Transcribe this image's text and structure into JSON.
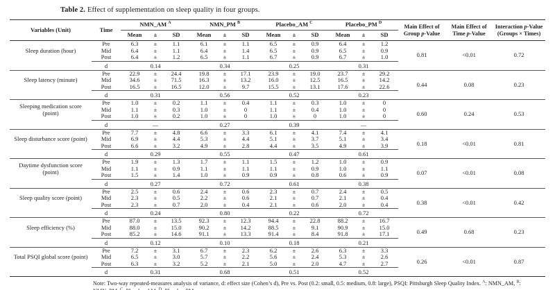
{
  "caption": {
    "label": "Table 2.",
    "text": "Effect of supplementation on sleep quality in four groups."
  },
  "table": {
    "header": {
      "variables": "Variables (Unit)",
      "time": "Time",
      "groups": [
        {
          "name": "NMN_AM",
          "sup": "A"
        },
        {
          "name": "NMN_PM",
          "sup": "B"
        },
        {
          "name": "Placebo_AM",
          "sup": "C"
        },
        {
          "name": "Placebo_PM",
          "sup": "D"
        }
      ],
      "stat_cols": [
        "Mean",
        "±",
        "SD"
      ],
      "effect_cols": [
        "Main Effect of Group p-Value",
        "Main Effect of Time p-Value",
        "Interaction p-Value (Groups × Times)"
      ]
    },
    "pm": "±",
    "d_label": "d",
    "time_levels": [
      "Pre",
      "Mid",
      "Post"
    ],
    "blocks": [
      {
        "variable": "Sleep duration (hour)",
        "groups": [
          {
            "mean": [
              "6.3",
              "6.4",
              "6.4"
            ],
            "sd": [
              "1.1",
              "1.1",
              "1.2"
            ],
            "d": "0.14"
          },
          {
            "mean": [
              "6.1",
              "6.4",
              "6.5"
            ],
            "sd": [
              "1.1",
              "1.4",
              "1.1"
            ],
            "d": "0.34"
          },
          {
            "mean": [
              "6.5",
              "6.5",
              "6.7"
            ],
            "sd": [
              "0.9",
              "0.9",
              "0.9"
            ],
            "d": "0.25"
          },
          {
            "mean": [
              "6.4",
              "6.5",
              "6.7"
            ],
            "sd": [
              "1.2",
              "0.9",
              "1.0"
            ],
            "d": "0.31"
          }
        ],
        "p_group": "0.81",
        "p_time": "<0.01",
        "p_interaction": "0.72"
      },
      {
        "variable": "Sleep latency (minute)",
        "groups": [
          {
            "mean": [
              "22.9",
              "34.6",
              "16.5"
            ],
            "sd": [
              "24.4",
              "71.5",
              "16.5"
            ],
            "d": "0.31"
          },
          {
            "mean": [
              "19.8",
              "16.3",
              "12.0"
            ],
            "sd": [
              "17.1",
              "13.2",
              "9.7"
            ],
            "d": "0.56"
          },
          {
            "mean": [
              "23.9",
              "16.0",
              "15.5"
            ],
            "sd": [
              "19.0",
              "12.5",
              "13.1"
            ],
            "d": "0.52"
          },
          {
            "mean": [
              "23.7",
              "16.5",
              "17.6"
            ],
            "sd": [
              "29.2",
              "14.2",
              "22.6"
            ],
            "d": "0.23"
          }
        ],
        "p_group": "0.44",
        "p_time": "0.08",
        "p_interaction": "0.23"
      },
      {
        "variable": "Sleeping medication score (point)",
        "groups": [
          {
            "mean": [
              "1.0",
              "1.1",
              "1.0"
            ],
            "sd": [
              "0.2",
              "0.3",
              "0.2"
            ],
            "d": "—"
          },
          {
            "mean": [
              "1.1",
              "1.0",
              "1.0"
            ],
            "sd": [
              "0.4",
              "0",
              "0"
            ],
            "d": "0.27"
          },
          {
            "mean": [
              "1.1",
              "1.1",
              "1.0"
            ],
            "sd": [
              "0.3",
              "0.4",
              "0"
            ],
            "d": "0.39"
          },
          {
            "mean": [
              "1.0",
              "1.0",
              "1.0"
            ],
            "sd": [
              "0",
              "0",
              "0"
            ],
            "d": "—"
          }
        ],
        "p_group": "0.60",
        "p_time": "0.24",
        "p_interaction": "0.53"
      },
      {
        "variable": "Sleep disturbance score (point)",
        "groups": [
          {
            "mean": [
              "7.7",
              "6.9",
              "6.6"
            ],
            "sd": [
              "4.8",
              "4.4",
              "3.2"
            ],
            "d": "0.29"
          },
          {
            "mean": [
              "6.6",
              "5.3",
              "4.9"
            ],
            "sd": [
              "3.3",
              "4.4",
              "2.8"
            ],
            "d": "0.55"
          },
          {
            "mean": [
              "6.1",
              "5.1",
              "4.4"
            ],
            "sd": [
              "4.1",
              "3.7",
              "3.5"
            ],
            "d": "0.47"
          },
          {
            "mean": [
              "7.4",
              "5.1",
              "4.9"
            ],
            "sd": [
              "4.1",
              "3.4",
              "3.9"
            ],
            "d": "0.61"
          }
        ],
        "p_group": "0.18",
        "p_time": "<0.01",
        "p_interaction": "0.81"
      },
      {
        "variable": "Daytime dysfunction score (point)",
        "groups": [
          {
            "mean": [
              "1.9",
              "1.1",
              "1.5"
            ],
            "sd": [
              "1.3",
              "0.9",
              "1.4"
            ],
            "d": "0.27"
          },
          {
            "mean": [
              "1.7",
              "1.1",
              "1.0"
            ],
            "sd": [
              "1.1",
              "1.1",
              "0.9"
            ],
            "d": "0.72"
          },
          {
            "mean": [
              "1.5",
              "1.1",
              "0.9"
            ],
            "sd": [
              "1.2",
              "0.9",
              "0.8"
            ],
            "d": "0.61"
          },
          {
            "mean": [
              "1.0",
              "1.0",
              "0.6"
            ],
            "sd": [
              "0.9",
              "1.1",
              "0.9"
            ],
            "d": "0.38"
          }
        ],
        "p_group": "0.07",
        "p_time": "<0.01",
        "p_interaction": "0.08"
      },
      {
        "variable": "Sleep quality score (point)",
        "groups": [
          {
            "mean": [
              "2.5",
              "2.3",
              "2.3"
            ],
            "sd": [
              "0.6",
              "0.5",
              "0.7"
            ],
            "d": "0.24"
          },
          {
            "mean": [
              "2.4",
              "2.2",
              "2.0"
            ],
            "sd": [
              "0.6",
              "0.6",
              "0.4"
            ],
            "d": "0.80"
          },
          {
            "mean": [
              "2.3",
              "2.1",
              "2.1"
            ],
            "sd": [
              "0.7",
              "0.7",
              "0.6"
            ],
            "d": "0.22"
          },
          {
            "mean": [
              "2.4",
              "2.1",
              "2.0"
            ],
            "sd": [
              "0.5",
              "0.4",
              "0.4"
            ],
            "d": "0.72"
          }
        ],
        "p_group": "0.38",
        "p_time": "<0.01",
        "p_interaction": "0.42"
      },
      {
        "variable": "Sleep efficiency (%)",
        "groups": [
          {
            "mean": [
              "87.0",
              "88.0",
              "85.2"
            ],
            "sd": [
              "13.5",
              "15.0",
              "14.6"
            ],
            "d": "0.12"
          },
          {
            "mean": [
              "92.3",
              "90.2",
              "91.1"
            ],
            "sd": [
              "12.3",
              "14.2",
              "13.3"
            ],
            "d": "0.10"
          },
          {
            "mean": [
              "94.4",
              "88.5",
              "91.4"
            ],
            "sd": [
              "22.8",
              "9.1",
              "8.4"
            ],
            "d": "0.18"
          },
          {
            "mean": [
              "88.2",
              "90.9",
              "91.8"
            ],
            "sd": [
              "16.7",
              "15.0",
              "17.1"
            ],
            "d": "0.21"
          }
        ],
        "p_group": "0.49",
        "p_time": "0.68",
        "p_interaction": "0.23"
      },
      {
        "variable": "Total PSQI global score (point)",
        "groups": [
          {
            "mean": [
              "7.2",
              "6.5",
              "6.3"
            ],
            "sd": [
              "3.1",
              "3.0",
              "3.2"
            ],
            "d": "0.31"
          },
          {
            "mean": [
              "6.7",
              "5.7",
              "5.2"
            ],
            "sd": [
              "2.3",
              "2.2",
              "2.1"
            ],
            "d": "0.68"
          },
          {
            "mean": [
              "6.2",
              "5.6",
              "5.0"
            ],
            "sd": [
              "2.6",
              "2.4",
              "2.0"
            ],
            "d": "0.51"
          },
          {
            "mean": [
              "6.3",
              "5.3",
              "4.7"
            ],
            "sd": [
              "3.3",
              "2.6",
              "2.7"
            ],
            "d": "0.52"
          }
        ],
        "p_group": "0.26",
        "p_time": "<0.01",
        "p_interaction": "0.87"
      }
    ]
  },
  "note": {
    "parts": [
      {
        "text": "Note: Two-way repeated-measures analysis of variance, d: effect size (Cohen’s d), Pre vs. Post (0.2: small, 0.5: medium, 0.8: large), PSQI: Pittsburgh Sleep Quality Index. "
      },
      {
        "sup": "A"
      },
      {
        "text": ": NMN_AM, "
      },
      {
        "sup": "B"
      },
      {
        "text": ": NMN_PM, "
      },
      {
        "sup": "C"
      },
      {
        "text": ": Placebo_AM, "
      },
      {
        "sup": "D"
      },
      {
        "text": ": Placebo_PM."
      }
    ]
  }
}
